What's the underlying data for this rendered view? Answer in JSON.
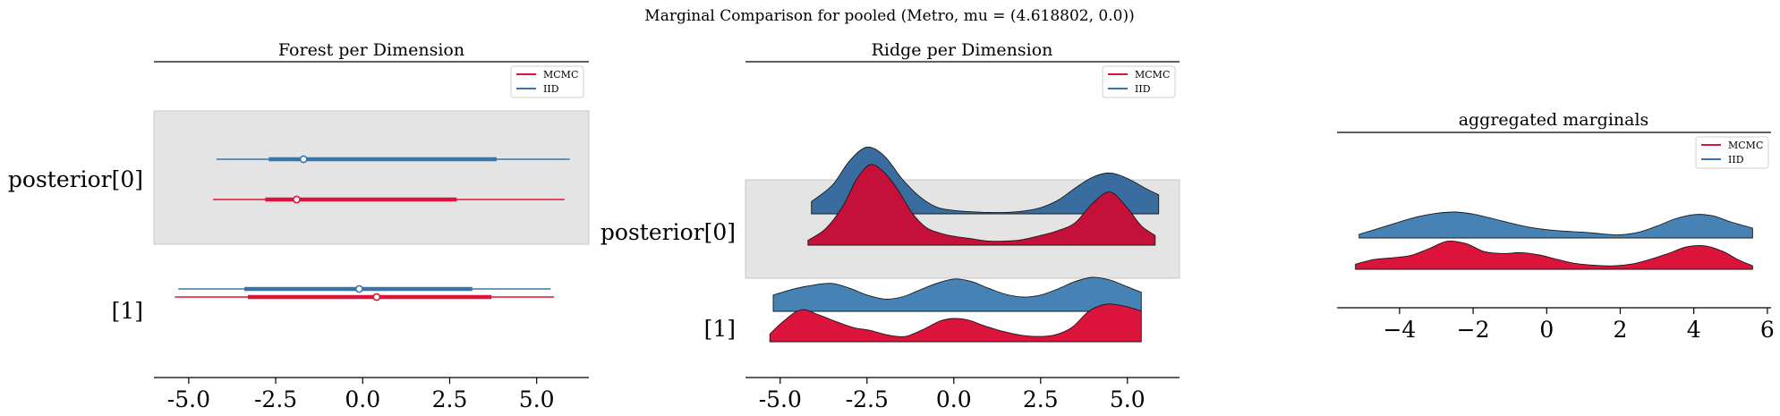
{
  "suptitle": "Marginal Comparison for pooled (Metro, mu = (4.618802, 0.0))",
  "colors": {
    "mcmc": "#dc143c",
    "iid": "#3a73a8",
    "band": "#e4e4e4",
    "ridge_dark": "#c5113a"
  },
  "legend": [
    "MCMC",
    "IID"
  ],
  "chart_data": [
    {
      "type": "forest",
      "title": "Forest per Dimension",
      "rows": [
        "posterior[0]",
        "[1]"
      ],
      "xlim": [
        -6.0,
        6.5
      ],
      "xticks": [
        "-5.0",
        "-2.5",
        "0.0",
        "2.5",
        "5.0"
      ],
      "series": [
        {
          "name": "MCMC",
          "row": "posterior[0]",
          "hdi": [
            -4.3,
            5.8
          ],
          "iqr": [
            -2.8,
            2.7
          ],
          "point": -1.9
        },
        {
          "name": "IID",
          "row": "posterior[0]",
          "hdi": [
            -4.2,
            5.95
          ],
          "iqr": [
            -2.7,
            3.85
          ],
          "point": -1.7
        },
        {
          "name": "MCMC",
          "row": "[1]",
          "hdi": [
            -5.4,
            5.5
          ],
          "iqr": [
            -3.3,
            3.7
          ],
          "point": 0.4
        },
        {
          "name": "IID",
          "row": "[1]",
          "hdi": [
            -5.3,
            5.4
          ],
          "iqr": [
            -3.4,
            3.15
          ],
          "point": -0.1
        }
      ]
    },
    {
      "type": "ridge",
      "title": "Ridge per Dimension",
      "rows": [
        "posterior[0]",
        "[1]"
      ],
      "xlim": [
        -6.0,
        6.5
      ],
      "xticks": [
        "-5.0",
        "-2.5",
        "0.0",
        "2.5",
        "5.0"
      ],
      "series": [
        {
          "name": "IID",
          "row": "posterior[0]",
          "x": [
            -4.1,
            -3.5,
            -3.0,
            -2.5,
            -2.0,
            -1.5,
            -1.0,
            -0.5,
            0,
            0.5,
            1.0,
            1.5,
            2.0,
            2.5,
            3.0,
            3.5,
            4.0,
            4.5,
            5.0,
            5.5,
            5.9
          ],
          "density": [
            0.18,
            0.42,
            0.78,
            0.98,
            0.85,
            0.52,
            0.26,
            0.1,
            0.05,
            0.03,
            0.02,
            0.02,
            0.04,
            0.09,
            0.2,
            0.38,
            0.54,
            0.6,
            0.52,
            0.38,
            0.28
          ]
        },
        {
          "name": "MCMC",
          "row": "posterior[0]",
          "x": [
            -4.2,
            -3.7,
            -3.2,
            -2.8,
            -2.4,
            -2.0,
            -1.6,
            -1.2,
            -0.8,
            -0.4,
            0,
            0.5,
            1.0,
            1.5,
            2.0,
            2.5,
            3.0,
            3.5,
            4.0,
            4.5,
            5.0,
            5.4,
            5.8
          ],
          "density": [
            0.06,
            0.2,
            0.48,
            0.82,
            1.0,
            0.9,
            0.68,
            0.4,
            0.22,
            0.15,
            0.11,
            0.08,
            0.05,
            0.05,
            0.07,
            0.12,
            0.18,
            0.28,
            0.52,
            0.66,
            0.46,
            0.24,
            0.12
          ]
        },
        {
          "name": "IID",
          "row": "[1]",
          "x": [
            -5.2,
            -4.6,
            -4.0,
            -3.5,
            -3.0,
            -2.5,
            -2.0,
            -1.5,
            -1.0,
            -0.5,
            0,
            0.5,
            1.0,
            1.5,
            2.0,
            2.5,
            3.0,
            3.5,
            4.0,
            4.5,
            5.0,
            5.4
          ],
          "density": [
            0.48,
            0.66,
            0.78,
            0.82,
            0.68,
            0.48,
            0.36,
            0.42,
            0.62,
            0.82,
            0.95,
            0.88,
            0.68,
            0.5,
            0.42,
            0.48,
            0.66,
            0.88,
            1.0,
            0.92,
            0.72,
            0.56
          ]
        },
        {
          "name": "MCMC",
          "row": "[1]",
          "x": [
            -5.3,
            -4.9,
            -4.4,
            -3.9,
            -3.4,
            -2.9,
            -2.4,
            -1.9,
            -1.4,
            -0.9,
            -0.4,
            0,
            0.4,
            0.9,
            1.4,
            1.9,
            2.4,
            2.9,
            3.4,
            3.9,
            4.4,
            4.9,
            5.4
          ],
          "density": [
            0.2,
            0.55,
            0.85,
            0.72,
            0.54,
            0.38,
            0.3,
            0.18,
            0.14,
            0.32,
            0.55,
            0.62,
            0.58,
            0.42,
            0.28,
            0.18,
            0.14,
            0.18,
            0.38,
            0.82,
            1.0,
            0.95,
            0.82
          ]
        }
      ]
    },
    {
      "type": "ridge",
      "title": "aggregated marginals",
      "rows": [],
      "xlim": [
        -5.7,
        6.1
      ],
      "xticks": [
        "−4",
        "−2",
        "0",
        "2",
        "4",
        "6"
      ],
      "series": [
        {
          "name": "IID",
          "x": [
            -5.1,
            -4.5,
            -4.0,
            -3.5,
            -3.0,
            -2.5,
            -2.0,
            -1.5,
            -1.0,
            -0.5,
            0,
            0.5,
            1.0,
            1.5,
            2.0,
            2.5,
            3.0,
            3.5,
            4.0,
            4.5,
            5.0,
            5.6
          ],
          "density": [
            0.14,
            0.4,
            0.62,
            0.82,
            0.95,
            1.0,
            0.92,
            0.76,
            0.58,
            0.42,
            0.32,
            0.26,
            0.22,
            0.16,
            0.12,
            0.22,
            0.46,
            0.74,
            0.9,
            0.86,
            0.62,
            0.38
          ]
        },
        {
          "name": "MCMC",
          "x": [
            -5.2,
            -4.7,
            -4.2,
            -3.7,
            -3.2,
            -2.7,
            -2.2,
            -1.7,
            -1.2,
            -0.7,
            -0.2,
            0.3,
            0.8,
            1.3,
            1.8,
            2.3,
            2.8,
            3.3,
            3.8,
            4.3,
            4.8,
            5.2,
            5.6
          ],
          "density": [
            0.18,
            0.34,
            0.4,
            0.48,
            0.72,
            0.98,
            0.9,
            0.62,
            0.55,
            0.58,
            0.5,
            0.34,
            0.2,
            0.14,
            0.12,
            0.18,
            0.34,
            0.55,
            0.78,
            0.82,
            0.62,
            0.34,
            0.12
          ]
        }
      ]
    }
  ]
}
